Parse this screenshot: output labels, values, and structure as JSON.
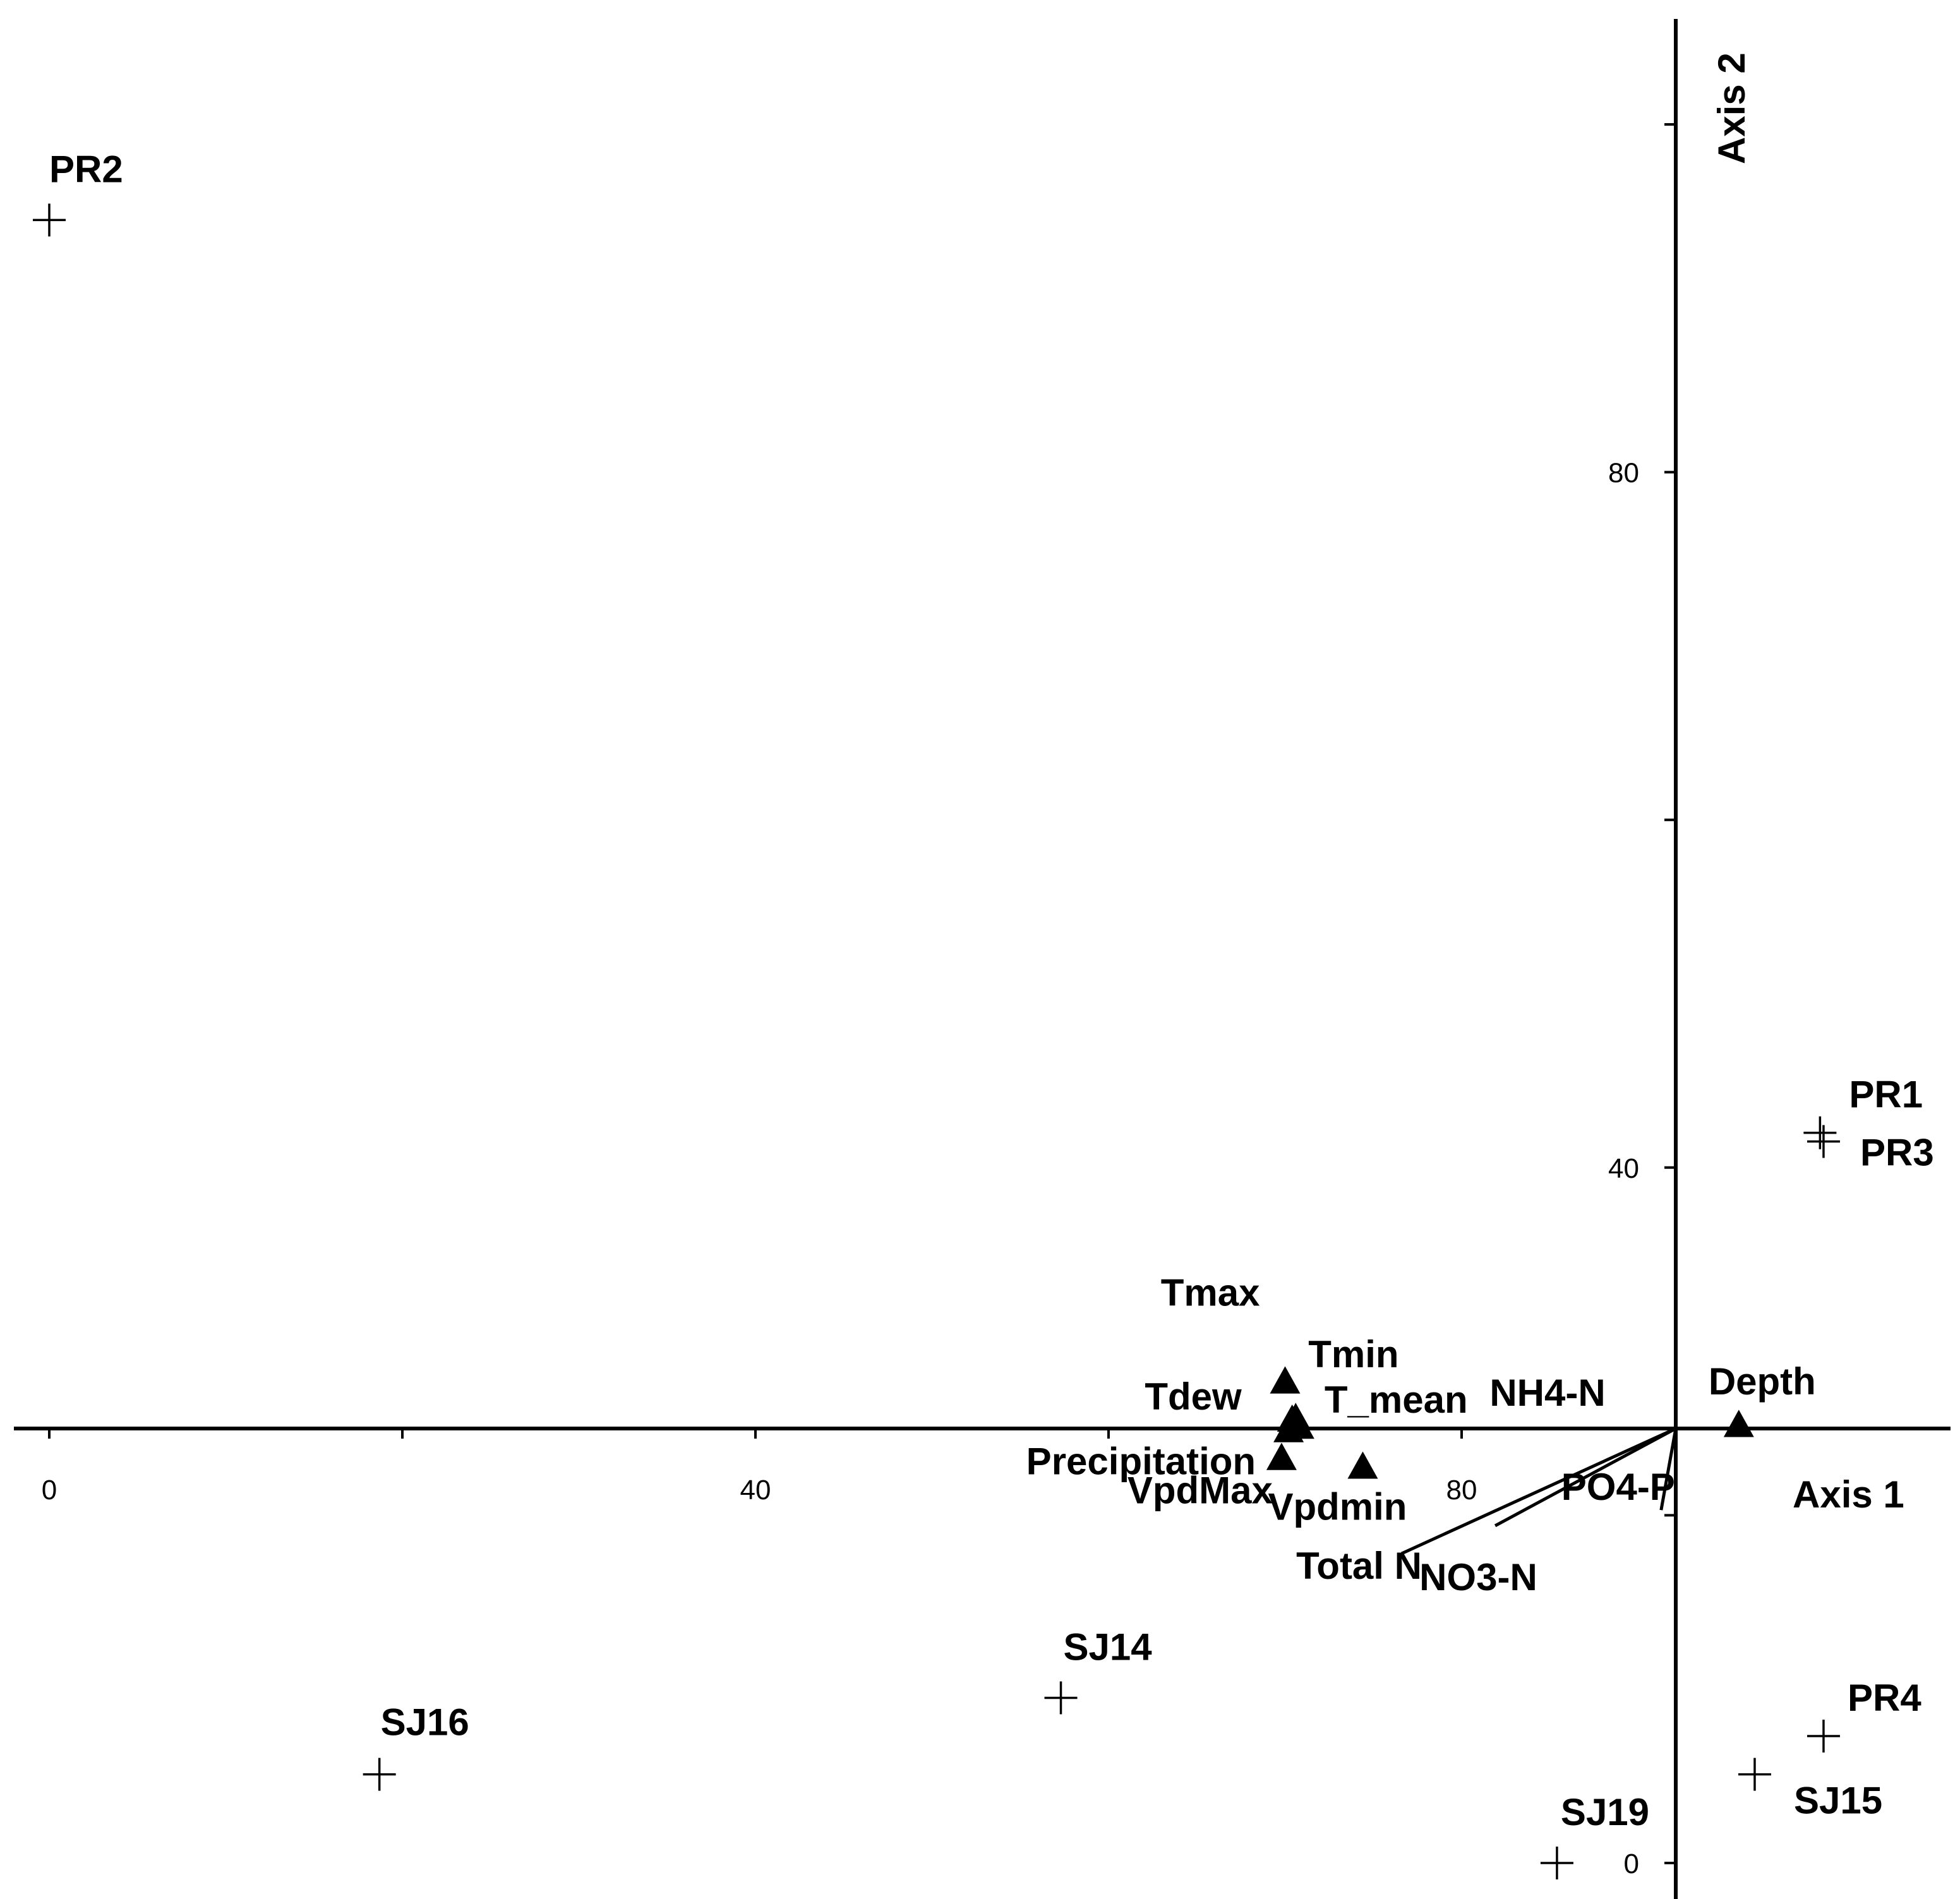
{
  "chart_data": {
    "type": "scatter",
    "x_axis": {
      "title": "Axis 1",
      "ticks": [
        "0",
        "40",
        "80"
      ],
      "tick_values": [
        0,
        40,
        80
      ],
      "minor_tick_values": [
        20,
        60
      ]
    },
    "y_axis": {
      "title": "Axis 2",
      "ticks": [
        "0",
        "40",
        "80"
      ],
      "tick_values": [
        0,
        40,
        80
      ],
      "minor_tick_values": [
        20,
        60,
        100
      ]
    },
    "grid": false,
    "sites": [
      {
        "label": "PR2",
        "x": 0,
        "y": 94.5
      },
      {
        "label": "PR1",
        "x": 100.3,
        "y": 42.0
      },
      {
        "label": "PR3",
        "x": 100.5,
        "y": 41.5
      },
      {
        "label": "PR4",
        "x": 100.5,
        "y": 7.3
      },
      {
        "label": "SJ15",
        "x": 96.6,
        "y": 5.1
      },
      {
        "label": "SJ14",
        "x": 57.3,
        "y": 9.5
      },
      {
        "label": "SJ16",
        "x": 18.7,
        "y": 5.1
      },
      {
        "label": "SJ19",
        "x": 85.4,
        "y": 0
      }
    ],
    "variables": [
      {
        "label": "Tmax",
        "x": 70.0,
        "y": 27.7
      },
      {
        "label": "Tdew",
        "x": 70.4,
        "y": 25.5
      },
      {
        "label": "Tmin",
        "x": 70.6,
        "y": 25.6
      },
      {
        "label": "T_mean",
        "x": 70.8,
        "y": 25.1
      },
      {
        "label": "Precipitation",
        "x": 70.2,
        "y": 24.9
      },
      {
        "label": "VpdMax",
        "x": 69.8,
        "y": 23.3
      },
      {
        "label": "Vpdmin",
        "x": 74.4,
        "y": 22.8
      },
      {
        "label": "Depth",
        "x": 95.7,
        "y": 25.2
      },
      {
        "label": "NH4-N",
        "x": 73.0,
        "y": 25.0
      },
      {
        "label": "Total N",
        "x": 76.6,
        "y": 17.8
      },
      {
        "label": "NO3-N",
        "x": 81.9,
        "y": 19.4
      },
      {
        "label": "PO4-P",
        "x": 91.3,
        "y": 20.3
      }
    ]
  }
}
